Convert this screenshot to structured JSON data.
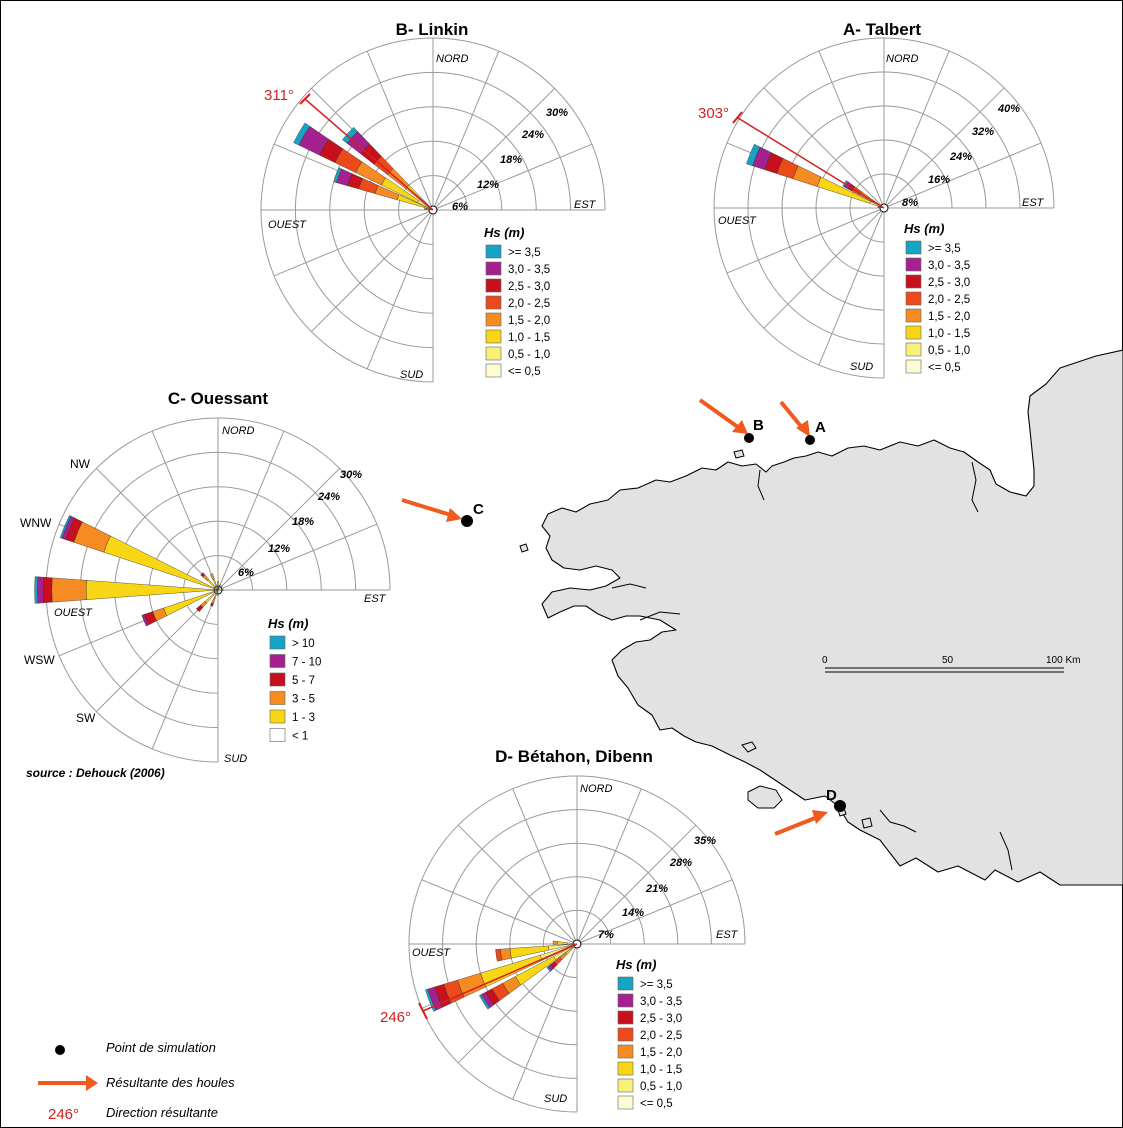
{
  "source": "source : Dehouck (2006)",
  "key": {
    "point": "Point de simulation",
    "arrow": "Résultante des houles",
    "direction_value": "246°",
    "direction": "Direction résultante"
  },
  "scale": {
    "labels": [
      "0",
      "50",
      "100 Km"
    ]
  },
  "points": [
    {
      "label": "A"
    },
    {
      "label": "B"
    },
    {
      "label": "C"
    },
    {
      "label": "D"
    }
  ],
  "colors": {
    "land": "#e2e2e2",
    "grid": "#9a9a9a",
    "arrow": "#f05a1e",
    "resultant": "#d42020"
  },
  "roses": [
    {
      "id": "linkin",
      "title": "B- Linkin",
      "dir_labels": [
        "NORD",
        "EST",
        "SUD",
        "OUEST"
      ],
      "ring_labels": [
        "6%",
        "12%",
        "18%",
        "24%",
        "30%"
      ],
      "resultant": "311°",
      "legend_title": "Hs (m)",
      "legend_items": [
        ">= 3,5",
        "3,0 - 3,5",
        "2,5 - 3,0",
        "2,0 - 2,5",
        "1,5 - 2,0",
        "1,0 - 1,5",
        "0,5 - 1,0",
        "<= 0,5"
      ],
      "legend_colors": [
        "#17a3c4",
        "#a4218f",
        "#c8101c",
        "#ec4a1b",
        "#f58b21",
        "#f8d616",
        "#f9f078",
        "#fdfcd2"
      ],
      "petals": [
        {
          "direction": "300°",
          "percent": 27,
          "classes": [
            1,
            4,
            3,
            4,
            5,
            7,
            2,
            1
          ]
        },
        {
          "direction": "312°",
          "percent": 20,
          "classes": [
            1,
            3,
            3,
            3,
            4,
            4,
            1,
            1
          ]
        },
        {
          "direction": "290°",
          "percent": 18,
          "classes": [
            0.5,
            2,
            2,
            3,
            4,
            5,
            1,
            0.5
          ]
        },
        {
          "direction": "278°",
          "percent": 1.5,
          "classes": [
            0,
            0,
            0,
            0,
            0.5,
            0.5,
            0.5,
            0
          ]
        }
      ]
    },
    {
      "id": "talbert",
      "title": "A- Talbert",
      "dir_labels": [
        "NORD",
        "EST",
        "SUD",
        "OUEST"
      ],
      "ring_labels": [
        "8%",
        "16%",
        "24%",
        "32%",
        "40%"
      ],
      "resultant": "303°",
      "legend_title": "Hs (m)",
      "legend_items": [
        ">= 3,5",
        "3,0 - 3,5",
        "2,5 - 3,0",
        "2,0 - 2,5",
        "1,5 - 2,0",
        "1,0 - 1,5",
        "0,5 - 1,0",
        "<= 0,5"
      ],
      "legend_colors": [
        "#17a3c4",
        "#a4218f",
        "#c8101c",
        "#ec4a1b",
        "#f58b21",
        "#f8d616",
        "#f9f078",
        "#fdfcd2"
      ],
      "petals": [
        {
          "direction": "292°",
          "percent": 34,
          "classes": [
            1.5,
            3,
            3,
            4,
            6,
            13,
            3,
            0.5
          ]
        },
        {
          "direction": "302°",
          "percent": 11,
          "classes": [
            0.5,
            1,
            1,
            2,
            2,
            3,
            1,
            0.5
          ]
        },
        {
          "direction": "280°",
          "percent": 1.5,
          "classes": [
            0,
            0,
            0,
            0.5,
            0.5,
            0.5,
            0,
            0
          ]
        }
      ]
    },
    {
      "id": "ouessant",
      "title": "C- Ouessant",
      "dir_labels": [
        "NORD",
        "EST",
        "SUD",
        "OUEST",
        "NW",
        "WNW",
        "WSW",
        "SW"
      ],
      "ring_labels": [
        "6%",
        "12%",
        "18%",
        "24%",
        "30%"
      ],
      "legend_title": "Hs (m)",
      "legend_items": [
        "> 10",
        "7 - 10",
        "5 - 7",
        "3 - 5",
        "1 - 3",
        "< 1"
      ],
      "legend_colors": [
        "#17a3c4",
        "#a4218f",
        "#c8101c",
        "#f58b21",
        "#f8d616",
        "#ffffff"
      ],
      "petals": [
        {
          "direction": "270°",
          "percent": 32,
          "classes": [
            0.5,
            1,
            1.5,
            6,
            23,
            0
          ]
        },
        {
          "direction": "292.5°",
          "percent": 29,
          "classes": [
            0.3,
            0.7,
            1.5,
            5.5,
            21,
            0
          ]
        },
        {
          "direction": "247.5°",
          "percent": 14,
          "classes": [
            0,
            0.5,
            1.5,
            2,
            10,
            0
          ]
        },
        {
          "direction": "315°",
          "percent": 4,
          "classes": [
            0,
            0,
            0.5,
            1,
            2.5,
            0
          ]
        },
        {
          "direction": "337.5°",
          "percent": 3,
          "classes": [
            0,
            0,
            0,
            1,
            2,
            0
          ]
        },
        {
          "direction": "225°",
          "percent": 5,
          "classes": [
            0,
            0,
            1,
            1,
            3,
            0
          ]
        },
        {
          "direction": "202.5°",
          "percent": 3,
          "classes": [
            0,
            0,
            0.5,
            1,
            1.5,
            0
          ]
        },
        {
          "direction": "0°",
          "percent": 1.5,
          "classes": [
            0,
            0,
            0,
            0.5,
            1,
            0
          ]
        },
        {
          "direction": "22.5°",
          "percent": 1,
          "classes": [
            0,
            0,
            0,
            0.3,
            0.7,
            0
          ]
        },
        {
          "direction": "45°",
          "percent": 1,
          "classes": [
            0,
            0,
            0,
            0.3,
            0.7,
            0
          ]
        },
        {
          "direction": "90°",
          "percent": 1,
          "classes": [
            0,
            0,
            0,
            0.3,
            0.7,
            0
          ]
        },
        {
          "direction": "180°",
          "percent": 1,
          "classes": [
            0,
            0,
            0,
            0.3,
            0.7,
            0
          ]
        }
      ]
    },
    {
      "id": "betahon",
      "title": "D- Bétahon, Dibenn",
      "dir_labels": [
        "NORD",
        "EST",
        "SUD",
        "OUEST"
      ],
      "ring_labels": [
        "7%",
        "14%",
        "21%",
        "28%",
        "35%"
      ],
      "resultant": "246°",
      "legend_title": "Hs (m)",
      "legend_items": [
        ">= 3,5",
        "3,0 - 3,5",
        "2,5 - 3,0",
        "2,0 - 2,5",
        "1,5 - 2,0",
        "1,0 - 1,5",
        "0,5 - 1,0",
        "<= 0,5"
      ],
      "legend_colors": [
        "#17a3c4",
        "#a4218f",
        "#c8101c",
        "#ec4a1b",
        "#f58b21",
        "#f8d616",
        "#f9f078",
        "#fdfcd2"
      ],
      "petals": [
        {
          "direction": "249°",
          "percent": 33,
          "classes": [
            0.5,
            1.5,
            2,
            3,
            5,
            13,
            6,
            2
          ]
        },
        {
          "direction": "238°",
          "percent": 23,
          "classes": [
            0.5,
            1,
            1.5,
            2.5,
            3,
            9,
            4,
            1.5
          ]
        },
        {
          "direction": "262°",
          "percent": 17,
          "classes": [
            0,
            0,
            0,
            1,
            2,
            8,
            5,
            1
          ]
        },
        {
          "direction": "273°",
          "percent": 5,
          "classes": [
            0,
            0,
            0,
            0,
            1,
            2,
            1.5,
            0.5
          ]
        },
        {
          "direction": "228°",
          "percent": 8,
          "classes": [
            0.3,
            0.7,
            1,
            1.5,
            1.5,
            2,
            0.7,
            0.3
          ]
        }
      ]
    }
  ]
}
